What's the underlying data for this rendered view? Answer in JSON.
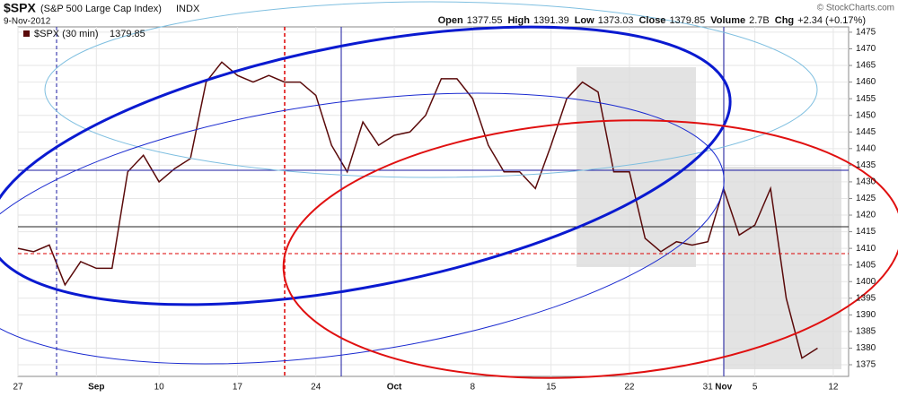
{
  "chart_data": {
    "type": "line",
    "symbol": "$SPX",
    "title": "(S&P 500 Large Cap Index)",
    "exchange": "INDX",
    "date": "9-Nov-2012",
    "source": "© StockCharts.com",
    "quote": [
      {
        "label": "Open",
        "value": 1377.55
      },
      {
        "label": "High",
        "value": 1391.39
      },
      {
        "label": "Low",
        "value": 1373.03
      },
      {
        "label": "Close",
        "value": 1379.85
      },
      {
        "label": "Volume",
        "value": "2.7B"
      },
      {
        "label": "Chg",
        "value": "+2.34 (+0.17%)"
      }
    ],
    "categories": [
      "27",
      null,
      null,
      null,
      null,
      "Sep",
      null,
      null,
      null,
      "10",
      null,
      null,
      null,
      null,
      "17",
      null,
      null,
      null,
      null,
      "24",
      null,
      null,
      null,
      null,
      "Oct",
      null,
      null,
      null,
      null,
      "8",
      null,
      null,
      null,
      null,
      "15",
      null,
      null,
      null,
      null,
      "22",
      null,
      null,
      null,
      null,
      "31",
      "Nov",
      null,
      "5",
      null,
      null,
      null,
      null,
      "12"
    ],
    "series": [
      {
        "name": "$SPX (30 min)",
        "last": 1379.85,
        "color": "#5a0a0a",
        "values": [
          1410,
          1409,
          1411,
          1399,
          1406,
          1404,
          1404,
          1433,
          1438,
          1430,
          1434,
          1437,
          1460,
          1466,
          1462,
          1460,
          1462,
          1460,
          1460,
          1456,
          1441,
          1433,
          1448,
          1441,
          1444,
          1445,
          1450,
          1461,
          1461,
          1455,
          1441,
          1433,
          1433,
          1428,
          1441,
          1455,
          1460,
          1457,
          1433,
          1433,
          1413,
          1409,
          1412,
          1411,
          1412,
          1428,
          1414,
          1417,
          1428,
          1395,
          1377,
          1380,
          null
        ]
      }
    ],
    "ylim": [
      1371.5,
      1476.6
    ],
    "yticks": [
      1375,
      1380,
      1385,
      1390,
      1395,
      1400,
      1405,
      1410,
      1415,
      1420,
      1425,
      1430,
      1435,
      1440,
      1445,
      1450,
      1455,
      1460,
      1465,
      1470,
      1475
    ],
    "grid": true
  }
}
